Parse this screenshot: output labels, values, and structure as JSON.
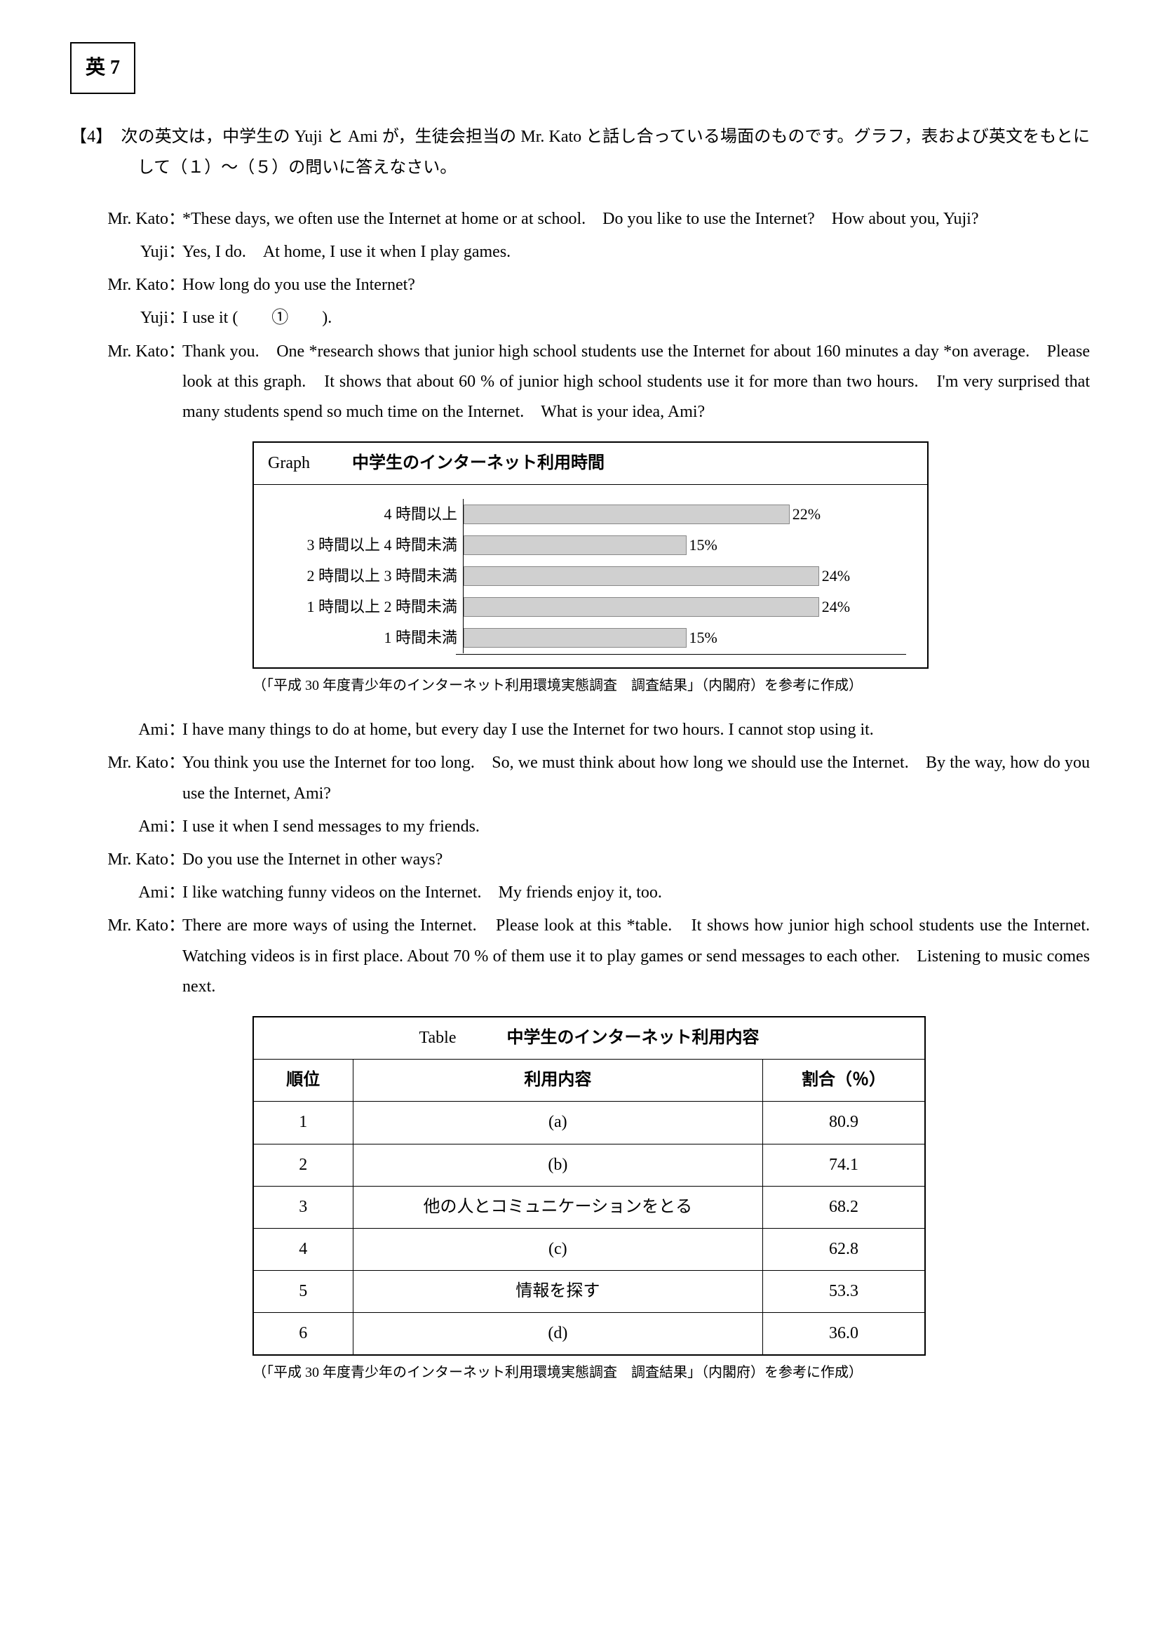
{
  "page_label": "英 7",
  "question_number": "【4】",
  "intro": "次の英文は，中学生の Yuji と Ami が，生徒会担当の Mr. Kato と話し合っている場面のものです。グラフ，表および英文をもとにして（１）〜（５）の問いに答えなさい。",
  "dialog": [
    {
      "speaker": "Mr. Kato",
      "text": "*These days, we often use the Internet at home or at school.　Do you like to use the Internet?　How about you, Yuji?"
    },
    {
      "speaker": "Yuji",
      "text": "Yes, I do.　At home, I use it when I play games."
    },
    {
      "speaker": "Mr. Kato",
      "text": "How long do you use the Internet?"
    },
    {
      "speaker": "Yuji",
      "text": "I use it (　　①　　)."
    },
    {
      "speaker": "Mr. Kato",
      "text": "Thank you.　One *research shows that junior high school students use the Internet for about 160 minutes a day *on average.　Please look at this graph.　It shows that about 60 % of junior high school students use it for more than two hours.　I'm very surprised that many students spend so much time on the Internet.　What is your idea, Ami?"
    }
  ],
  "graph": {
    "label": "Graph",
    "title": "中学生のインターネット利用時間",
    "type": "bar",
    "max_pct": 30,
    "bar_color": "#d0d0d0",
    "border_color": "#888888",
    "background": "#ffffff",
    "label_fontsize": 22,
    "bars": [
      {
        "label": "4 時間以上",
        "value": 22,
        "display": "22%"
      },
      {
        "label": "3 時間以上 4 時間未満",
        "value": 15,
        "display": "15%"
      },
      {
        "label": "2 時間以上 3 時間未満",
        "value": 24,
        "display": "24%"
      },
      {
        "label": "1 時間以上 2 時間未満",
        "value": 24,
        "display": "24%"
      },
      {
        "label": "1 時間未満",
        "value": 15,
        "display": "15%"
      }
    ],
    "caption": "（「平成 30 年度青少年のインターネット利用環境実態調査　調査結果」（内閣府）を参考に作成）"
  },
  "dialog2": [
    {
      "speaker": "Ami",
      "text": "I have many things to do at home, but every day I use the Internet for two hours.  I cannot stop using it."
    },
    {
      "speaker": "Mr. Kato",
      "text": "You think you use the Internet for too long.　So, we must think about how long we should use the Internet.　By the way, how do you use the Internet, Ami?"
    },
    {
      "speaker": "Ami",
      "text": "I use it when I send messages to my friends."
    },
    {
      "speaker": "Mr. Kato",
      "text": "Do you use the Internet in other ways?"
    },
    {
      "speaker": "Ami",
      "text": "I like watching funny videos on the Internet.　My friends enjoy it, too."
    },
    {
      "speaker": "Mr. Kato",
      "text": "There are more ways of using the Internet.　Please look at this *table.　It shows how junior high school students use the Internet.　Watching videos is in first place.  About 70 % of them use it to play games or send messages to each other.　Listening to music comes next."
    }
  ],
  "table": {
    "label": "Table",
    "title": "中学生のインターネット利用内容",
    "columns": [
      "順位",
      "利用内容",
      "割合（％）"
    ],
    "rows": [
      [
        "1",
        "(a)",
        "80.9"
      ],
      [
        "2",
        "(b)",
        "74.1"
      ],
      [
        "3",
        "他の人とコミュニケーションをとる",
        "68.2"
      ],
      [
        "4",
        "(c)",
        "62.8"
      ],
      [
        "5",
        "情報を探す",
        "53.3"
      ],
      [
        "6",
        "(d)",
        "36.0"
      ]
    ],
    "caption": "（「平成 30 年度青少年のインターネット利用環境実態調査　調査結果」（内閣府）を参考に作成）"
  }
}
